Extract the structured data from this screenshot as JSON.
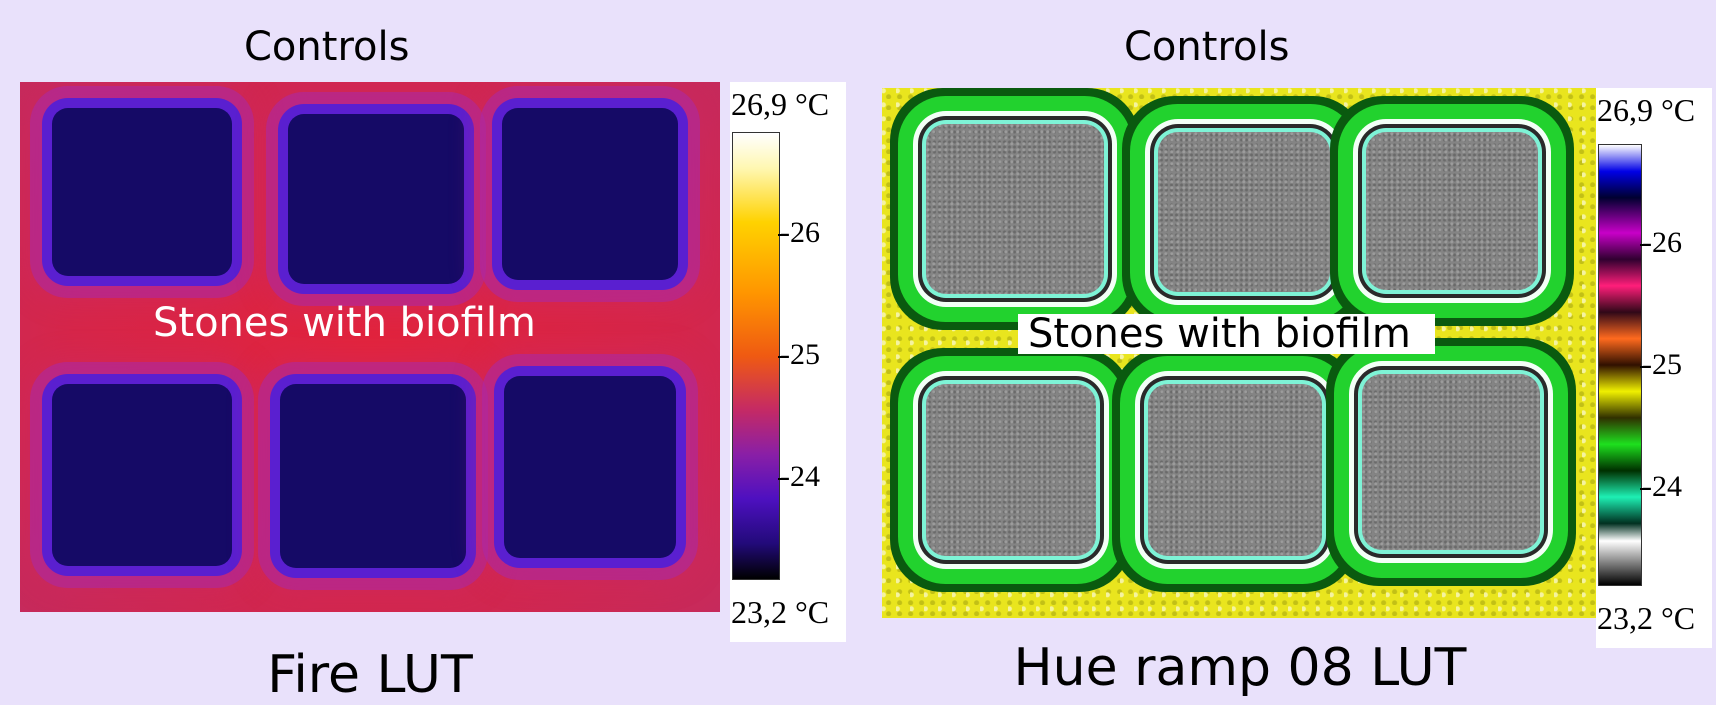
{
  "panels": [
    {
      "title": "Controls",
      "label": "Stones with biofilm",
      "caption": "Fire LUT",
      "scale": {
        "max": "26,9 °C",
        "min": "23,2 °C",
        "ticks": [
          "-26",
          "-25",
          "-24"
        ]
      }
    },
    {
      "title": "Controls",
      "label": "Stones with biofilm",
      "caption": "Hue ramp 08 LUT",
      "scale": {
        "max": "26,9 °C",
        "min": "23,2 °C",
        "ticks": [
          "-26",
          "-25",
          "-24"
        ]
      }
    }
  ],
  "colors": {
    "background": "#e9e1fb",
    "fire_stone": "#150a66",
    "fire_field": "#d6264a",
    "hue_field": "#e9e51e",
    "hue_stone": "#848484"
  }
}
